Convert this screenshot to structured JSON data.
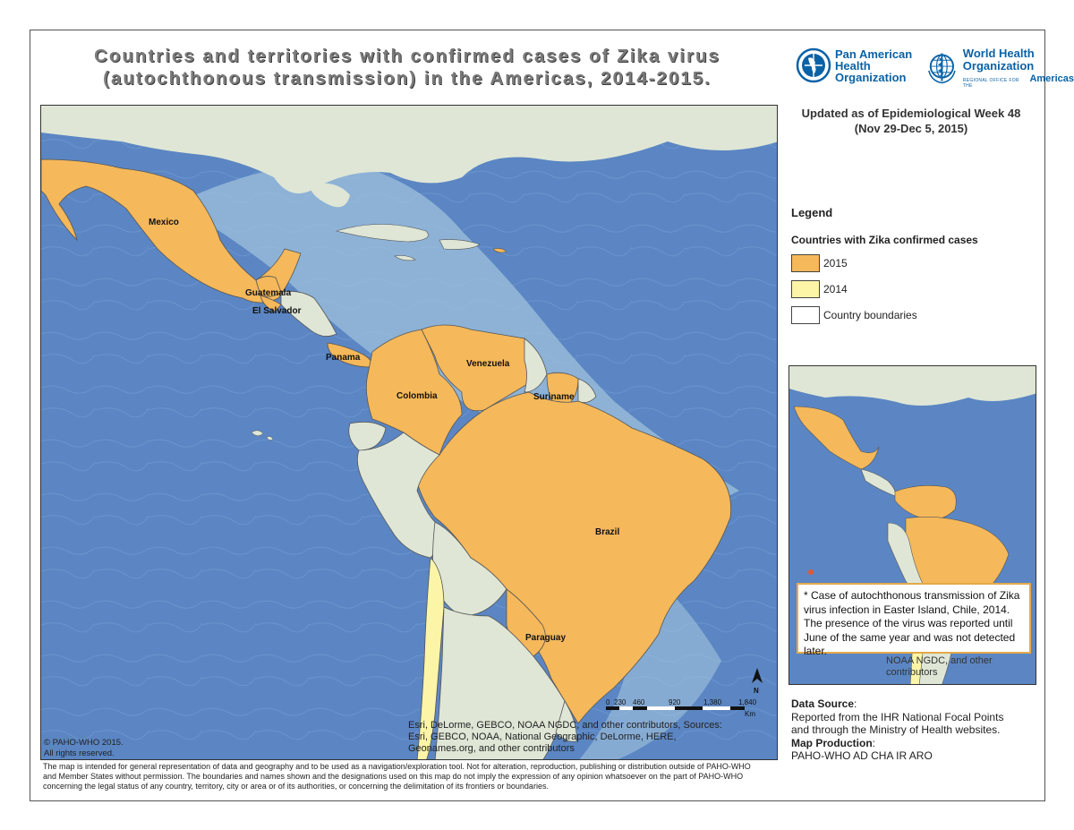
{
  "title": {
    "line1": "Countries and territories with confirmed cases of Zika virus",
    "line2": "(autochthonous transmission) in the Americas, 2014-2015."
  },
  "logos": {
    "paho": [
      "Pan American",
      "Health",
      "Organization"
    ],
    "who": [
      "World Health",
      "Organization"
    ],
    "who_sub": "REGIONAL OFFICE FOR THE",
    "who_region": "Americas"
  },
  "updated": {
    "line1": "Updated as of Epidemiological Week 48",
    "line2": "(Nov 29-Dec 5, 2015)"
  },
  "legend": {
    "heading": "Legend",
    "subheading": "Countries with Zika confirmed cases",
    "items": [
      {
        "label": "2015",
        "color": "#f5b85a"
      },
      {
        "label": "2014",
        "color": "#fcf5a8"
      },
      {
        "label": "Country boundaries",
        "color": "#ffffff"
      }
    ]
  },
  "map": {
    "colors": {
      "ocean": "#5b86c3",
      "shelf": "#a3c4de",
      "land": "#dfe6d6",
      "affected2015": "#f5b85a",
      "affected2014": "#fcf5a8",
      "border": "#555555"
    },
    "country_labels": [
      "Mexico",
      "Guatemala",
      "El Salvador",
      "Panama",
      "Venezuela",
      "Colombia",
      "Suriname",
      "Brazil",
      "Paraguay"
    ],
    "copyright": [
      "© PAHO-WHO 2015.",
      "All rights reserved."
    ],
    "attribution": [
      "Esri, DeLorme, GEBCO, NOAA NGDC, and other contributors, Sources:",
      "Esri, GEBCO, NOAA, National Geographic, DeLorme, HERE,",
      "Geonames.org, and other contributors"
    ],
    "scale": {
      "ticks": [
        "0",
        "230",
        "460",
        "920",
        "1,380",
        "1,840"
      ],
      "unit": "Km"
    }
  },
  "inset": {
    "note_lines": [
      "* Case of autochthonous transmission of Zika",
      "virus infection in Easter Island, Chile, 2014.",
      "The presence of the virus was reported until",
      "June of the same year and was not detected later."
    ],
    "attribution": [
      "NOAA NGDC, and other",
      "contributors"
    ]
  },
  "data_source": {
    "heading": "Data Source",
    "colon": ":",
    "lines": [
      "Reported from the IHR National Focal Points",
      "and through the Ministry of Health websites."
    ],
    "production_heading": "Map Production",
    "production_value": "PAHO-WHO AD CHA IR ARO"
  },
  "disclaimer": [
    "The map is intended for general representation of data and geography and to be used as a navigation/exploration tool. Not for alteration, reproduction, publishing or distribution outside of PAHO-WHO",
    "and Member States without permission. The boundaries and names shown and the designations used on this map do not imply the expression of any opinion whatsoever on the part of PAHO-WHO",
    "concerning the legal status of any country, territory, city or area or of its authorities, or concerning the delimitation of its frontiers or boundaries."
  ]
}
